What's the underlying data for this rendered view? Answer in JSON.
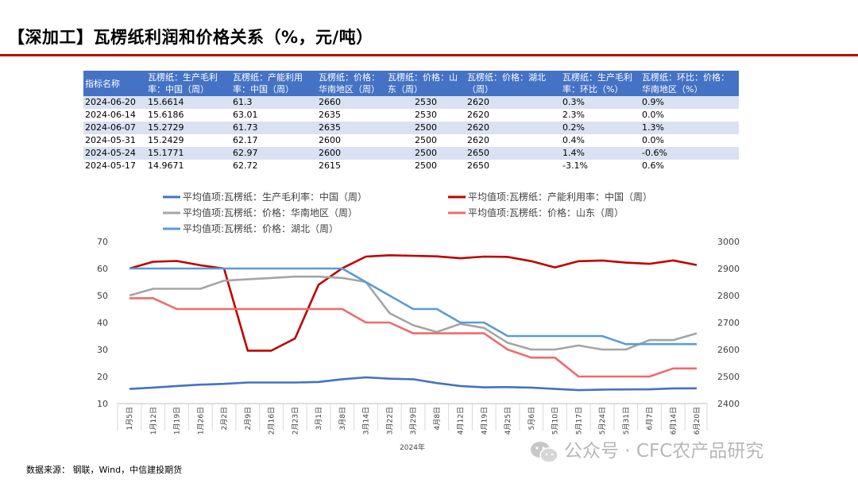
{
  "title": "【深加工】瓦楞纸利润和价格关系（%，元/吨）",
  "table": {
    "headers": [
      "指标名称",
      "瓦楞纸：生产毛利率：中国（周）",
      "瓦楞纸：产能利用率：中国（周）",
      "瓦楞纸：价格：华南地区（周）",
      "瓦楞纸：价格：山东（周）",
      "瓦楞纸：价格：湖北（周）",
      "瓦楞纸：生产毛利率：环比（%）",
      "瓦楞纸：环比：价格：华南地区（%）"
    ],
    "rows": [
      [
        "2024-06-20",
        "15.6614",
        "61.3",
        "2660",
        "2530",
        "2620",
        "0.3%",
        "0.9%"
      ],
      [
        "2024-06-14",
        "15.6186",
        "63.01",
        "2635",
        "2530",
        "2620",
        "2.3%",
        "0.0%"
      ],
      [
        "2024-06-07",
        "15.2729",
        "61.73",
        "2635",
        "2500",
        "2620",
        "0.2%",
        "1.3%"
      ],
      [
        "2024-05-31",
        "15.2429",
        "62.17",
        "2600",
        "2500",
        "2620",
        "0.4%",
        "0.0%"
      ],
      [
        "2024-05-24",
        "15.1771",
        "62.97",
        "2600",
        "2500",
        "2650",
        "1.4%",
        "-0.6%"
      ],
      [
        "2024-05-17",
        "14.9671",
        "62.72",
        "2615",
        "2500",
        "2650",
        "-3.1%",
        "0.6%"
      ]
    ]
  },
  "chart_data": {
    "type": "line",
    "x": [
      "1月5日",
      "1月12日",
      "1月19日",
      "1月26日",
      "2月2日",
      "2月9日",
      "2月16日",
      "2月23日",
      "3月1日",
      "3月8日",
      "3月14日",
      "3月22日",
      "3月29日",
      "4月8日",
      "4月12日",
      "4月19日",
      "4月25日",
      "5月6日",
      "5月10日",
      "5月17日",
      "5月24日",
      "5月31日",
      "6月7日",
      "6月14日",
      "6月20日"
    ],
    "xlabel": "2024年",
    "y_left": {
      "min": 10,
      "max": 70,
      "ticks": [
        "10",
        "20",
        "30",
        "40",
        "50",
        "60",
        "70"
      ]
    },
    "y_right": {
      "min": 2400,
      "max": 3000,
      "ticks": [
        "2400",
        "2500",
        "2600",
        "2700",
        "2800",
        "2900",
        "3000"
      ]
    },
    "legend_placement": "top",
    "series": [
      {
        "name": "平均值项:瓦楞纸：生产毛利率：中国（周）",
        "axis": "left",
        "color": "#4472c4",
        "values": [
          15.4,
          15.9,
          16.5,
          17.0,
          17.3,
          17.8,
          17.8,
          17.8,
          18.0,
          19.0,
          19.7,
          19.2,
          19.0,
          17.6,
          16.5,
          16.0,
          16.1,
          15.9,
          15.4,
          14.97,
          15.18,
          15.24,
          15.27,
          15.62,
          15.66
        ]
      },
      {
        "name": "平均值项:瓦楞纸：产能利用率：中国（周）",
        "axis": "left",
        "color": "#c00000",
        "values": [
          60.0,
          62.5,
          62.8,
          61.2,
          60.0,
          29.6,
          29.6,
          34.1,
          54.0,
          60.1,
          64.4,
          64.9,
          64.7,
          64.5,
          63.8,
          64.4,
          64.3,
          62.7,
          60.4,
          62.72,
          62.97,
          62.17,
          61.73,
          63.01,
          61.3
        ]
      },
      {
        "name": "平均值项:瓦楞纸：价格：华南地区（周）",
        "axis": "right",
        "color": "#a5a5a5",
        "values": [
          2800,
          2825,
          2825,
          2825,
          2855,
          2860,
          2865,
          2870,
          2870,
          2865,
          2850,
          2735,
          2690,
          2665,
          2695,
          2680,
          2625,
          2600,
          2600,
          2615,
          2600,
          2600,
          2635,
          2635,
          2660
        ]
      },
      {
        "name": "平均值项:瓦楞纸：价格：山东（周）",
        "axis": "right",
        "color": "#ef6b6b",
        "values": [
          2790,
          2790,
          2750,
          2750,
          2750,
          2750,
          2750,
          2750,
          2750,
          2750,
          2700,
          2700,
          2660,
          2660,
          2660,
          2660,
          2600,
          2570,
          2570,
          2500,
          2500,
          2500,
          2500,
          2530,
          2530
        ]
      },
      {
        "name": "平均值项:瓦楞纸：价格：湖北（周）",
        "axis": "right",
        "color": "#5b9bd5",
        "values": [
          2900,
          2900,
          2900,
          2900,
          2900,
          2900,
          2900,
          2900,
          2900,
          2900,
          2850,
          2800,
          2750,
          2750,
          2700,
          2700,
          2650,
          2650,
          2650,
          2650,
          2650,
          2620,
          2620,
          2620,
          2620
        ]
      }
    ]
  },
  "source": "数据来源：  钢联，Wind，中信建投期货",
  "watermark": "公众号 · CFC农产品研究",
  "watermark_icon": "wechat-icon"
}
